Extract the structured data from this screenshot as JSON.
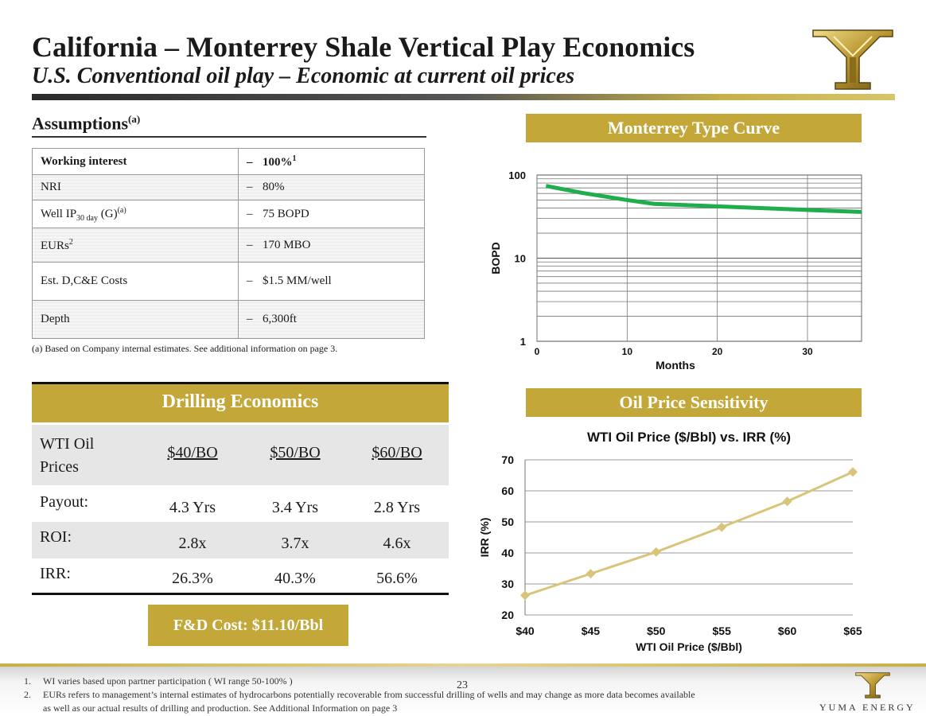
{
  "header": {
    "title": "California – Monterrey Shale Vertical Play Economics",
    "subtitle": "U.S. Conventional oil play – Economic at current oil prices"
  },
  "assumptions": {
    "heading": "Assumptions",
    "heading_sup": "(a)",
    "rows": [
      {
        "label": "Working interest",
        "value": "100%",
        "value_sup": "1"
      },
      {
        "label": "NRI",
        "value": "80%"
      },
      {
        "label_main": "Well IP",
        "label_sub": "30 day",
        "label_tail": " (G)",
        "label_sup": "(a)",
        "value": "75 BOPD"
      },
      {
        "label_main": "EURs",
        "label_sup": "2",
        "value": "170 MBO"
      },
      {
        "label": "Est. D,C&E Costs",
        "value": "$1.5 MM/well"
      },
      {
        "label": "Depth",
        "value": "6,300ft"
      }
    ],
    "dash": "–",
    "footnote": "(a)  Based on Company internal estimates.  See additional information on page 3."
  },
  "drilling": {
    "title": "Drilling Economics",
    "header_label_line1": "WTI Oil",
    "header_label_line2": "Prices",
    "prices": [
      "$40/BO",
      "$50/BO",
      "$60/BO"
    ],
    "rows": [
      {
        "label": "Payout:",
        "values": [
          "4.3 Yrs",
          "3.4 Yrs",
          "2.8 Yrs"
        ]
      },
      {
        "label": "ROI:",
        "values": [
          "2.8x",
          "3.7x",
          "4.6x"
        ]
      },
      {
        "label": "IRR:",
        "values": [
          "26.3%",
          "40.3%",
          "56.6%"
        ]
      }
    ],
    "fd_cost": "F&D Cost: $11.10/Bbl"
  },
  "type_curve": {
    "banner": "Monterrey Type Curve"
  },
  "sensitivity": {
    "banner": "Oil Price Sensitivity"
  },
  "chart_data": [
    {
      "type": "line",
      "title": "",
      "xlabel": "Months",
      "ylabel": "BOPD",
      "yscale": "log",
      "xlim": [
        0,
        36
      ],
      "ylim": [
        1,
        100
      ],
      "xticks": [
        "0",
        "10",
        "20",
        "30"
      ],
      "xtick_values": [
        0,
        10,
        20,
        30
      ],
      "yticks": [
        "1",
        "10",
        "100"
      ],
      "ytick_values": [
        1,
        10,
        100
      ],
      "series": [
        {
          "name": "Type Curve",
          "color": "#1fae4b",
          "x": [
            1,
            5,
            10,
            13,
            20,
            25,
            30,
            36
          ],
          "y": [
            74,
            61,
            50,
            45,
            42,
            40,
            38,
            36
          ]
        }
      ]
    },
    {
      "type": "line",
      "title": "WTI Oil Price ($/Bbl) vs. IRR (%)",
      "xlabel": "WTI Oil Price ($/Bbl)",
      "ylabel": "IRR (%)",
      "categories": [
        "$40",
        "$45",
        "$50",
        "$55",
        "$60",
        "$65"
      ],
      "ylim": [
        20,
        70
      ],
      "yticks": [
        "20",
        "30",
        "40",
        "50",
        "60",
        "70"
      ],
      "ytick_values": [
        20,
        30,
        40,
        50,
        60,
        70
      ],
      "series": [
        {
          "name": "IRR",
          "color": "#d9c57a",
          "values": [
            26.3,
            33.3,
            40.3,
            48.3,
            56.6,
            66.1
          ]
        }
      ]
    }
  ],
  "footer": {
    "notes": [
      {
        "num": "1.",
        "text": "WI varies based upon partner participation ( WI range 50-100% )"
      },
      {
        "num": "2.",
        "text": "EURs refers to management’s internal estimates of hydrocarbons potentially recoverable from successful drilling of wells and may change as more data becomes available"
      },
      {
        "num": "",
        "text": "as well as our actual results of drilling and production. See Additional Information on page 3"
      }
    ],
    "page_number": "23",
    "company": "YUMA ENERGY"
  },
  "colors": {
    "gold": "#c4a739",
    "type_curve_line": "#1fae4b",
    "sensitivity_line": "#d9c57a"
  }
}
